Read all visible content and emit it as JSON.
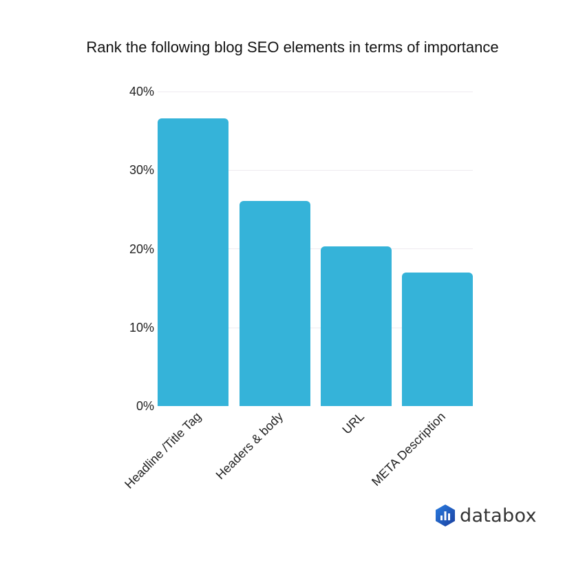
{
  "chart_data": {
    "type": "bar",
    "title": "Rank the following blog SEO elements in terms of importance",
    "xlabel": "",
    "ylabel": "",
    "categories": [
      "Headline /Title Tag",
      "Headers & body",
      "URL",
      "META Description"
    ],
    "values": [
      36.6,
      26.1,
      20.3,
      17.0
    ],
    "value_format": "percent",
    "ylim": [
      0,
      40
    ],
    "yticks": [
      "0%",
      "10%",
      "20%",
      "30%",
      "40%"
    ],
    "grid": true,
    "legend": null,
    "bar_color": "#35b3d9",
    "x_label_rotation": -45
  },
  "branding": {
    "logo_text": "databox",
    "logo_icon": "databox-hexagon-bars-icon",
    "logo_color": "#1e5fc7"
  }
}
